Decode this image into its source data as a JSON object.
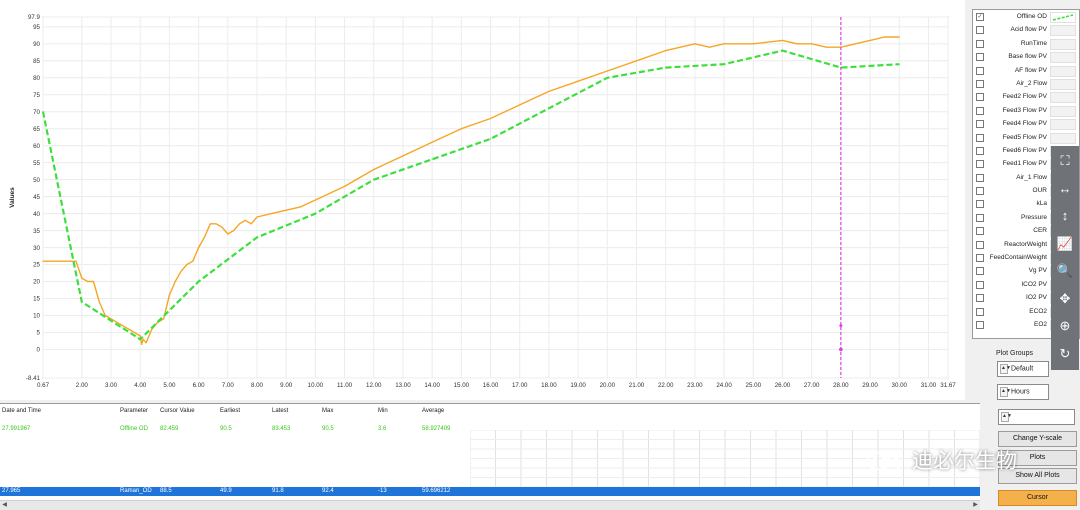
{
  "chart_data": {
    "type": "line",
    "title": "",
    "xlabel": "",
    "ylabel": "Values",
    "xlim": [
      0.67,
      31.67
    ],
    "ylim": [
      -8.41,
      97.9
    ],
    "x_ticks": [
      "0.67",
      "2.00",
      "3.00",
      "4.00",
      "5.00",
      "6.00",
      "7.00",
      "8.00",
      "9.00",
      "10.00",
      "11.00",
      "12.00",
      "13.00",
      "14.00",
      "15.00",
      "16.00",
      "17.00",
      "18.00",
      "19.00",
      "20.00",
      "21.00",
      "22.00",
      "23.00",
      "24.00",
      "25.00",
      "26.00",
      "27.00",
      "28.00",
      "29.00",
      "30.00",
      "31.00",
      "31.67"
    ],
    "y_ticks": [
      "97.9",
      "95",
      "90",
      "85",
      "80",
      "75",
      "70",
      "65",
      "60",
      "55",
      "50",
      "45",
      "40",
      "35",
      "30",
      "25",
      "20",
      "15",
      "10",
      "5",
      "0",
      "-8.41"
    ],
    "grid": true,
    "cursor_x": 28.0,
    "series": [
      {
        "color": "#f5a623",
        "style": "solid",
        "x": [
          0.67,
          1.2,
          1.8,
          2.0,
          2.2,
          2.4,
          2.6,
          2.8,
          3.0,
          3.2,
          3.4,
          3.6,
          3.8,
          4.0,
          4.05,
          4.1,
          4.2,
          4.4,
          4.6,
          4.8,
          5.0,
          5.2,
          5.4,
          5.6,
          5.8,
          6.0,
          6.2,
          6.4,
          6.6,
          6.8,
          7.0,
          7.2,
          7.4,
          7.6,
          7.8,
          8.0,
          8.5,
          9.0,
          9.5,
          10.0,
          11.0,
          12.0,
          13.0,
          14.0,
          15.0,
          16.0,
          17.0,
          18.0,
          19.0,
          20.0,
          21.0,
          22.0,
          23.0,
          23.5,
          24.0,
          25.0,
          26.0,
          26.5,
          27.0,
          27.5,
          28.0,
          28.5,
          29.0,
          29.5,
          30.0
        ],
        "y": [
          26,
          26,
          26,
          21,
          20,
          20,
          14,
          10,
          9,
          8,
          7,
          6,
          5,
          4,
          1.5,
          3,
          2,
          6,
          8,
          9,
          16,
          20,
          23,
          25,
          26,
          30,
          33,
          37,
          37,
          36,
          34,
          35,
          37,
          38,
          37,
          39,
          40,
          41,
          42,
          44,
          48,
          53,
          57,
          61,
          65,
          68,
          72,
          76,
          79,
          82,
          85,
          88,
          90,
          89,
          90,
          90,
          91,
          90,
          90,
          89,
          89,
          90,
          91,
          92,
          92
        ]
      },
      {
        "color": "#3ddf3d",
        "style": "dashed",
        "x": [
          0.67,
          2.0,
          4.0,
          6.0,
          8.0,
          10.0,
          12.0,
          14.0,
          16.0,
          18.0,
          20.0,
          22.0,
          24.0,
          26.0,
          28.0,
          30.0
        ],
        "y": [
          70,
          14,
          3,
          20,
          33,
          40,
          50,
          56,
          62,
          71,
          80,
          83,
          84,
          88,
          83,
          84
        ]
      }
    ]
  },
  "legend": {
    "items": [
      {
        "name": "Offline OD",
        "checked": true,
        "color": "#3ddf3d"
      },
      {
        "name": "Acid flow PV",
        "checked": false
      },
      {
        "name": "RunTime",
        "checked": false
      },
      {
        "name": "Base flow PV",
        "checked": false
      },
      {
        "name": "AF flow PV",
        "checked": false
      },
      {
        "name": "Air_2 Flow",
        "checked": false
      },
      {
        "name": "Feed2 Flow PV",
        "checked": false
      },
      {
        "name": "Feed3 Flow PV",
        "checked": false
      },
      {
        "name": "Feed4 Flow PV",
        "checked": false
      },
      {
        "name": "Feed5 Flow PV",
        "checked": false
      },
      {
        "name": "Feed6 Flow PV",
        "checked": false
      },
      {
        "name": "Feed1 Flow PV",
        "checked": false
      },
      {
        "name": "Air_1 Flow",
        "checked": false
      },
      {
        "name": "OUR",
        "checked": false
      },
      {
        "name": "kLa",
        "checked": false
      },
      {
        "name": "Pressure",
        "checked": false
      },
      {
        "name": "CER",
        "checked": false
      },
      {
        "name": "ReactorWeight",
        "checked": false
      },
      {
        "name": "FeedContainWeight",
        "checked": false
      },
      {
        "name": "Vg PV",
        "checked": false
      },
      {
        "name": "ICO2 PV",
        "checked": false
      },
      {
        "name": "IO2 PV",
        "checked": false
      },
      {
        "name": "ECO2",
        "checked": false
      },
      {
        "name": "EO2",
        "checked": false
      }
    ],
    "check_mark": "✓"
  },
  "toolbar": {
    "icons": [
      "zoom-fit-icon",
      "zoom-x-icon",
      "zoom-y-icon",
      "autoscale-icon",
      "zoom-box-icon",
      "pan-icon",
      "target-icon",
      "reset-icon"
    ],
    "glyphs": [
      "⛶",
      "↔",
      "↕",
      "📈",
      "🔍",
      "✥",
      "⊕",
      "↻"
    ]
  },
  "plot_groups": {
    "label": "Plot Groups",
    "group_value": "Default",
    "unit_value": "Hours",
    "spin_glyph": "▲▼"
  },
  "buttons": {
    "change_y_scale": "Change Y-scale",
    "plots": "Plots",
    "show_all_plots": "Show All Plots",
    "cursor": "Cursor"
  },
  "table": {
    "headers": [
      "Date and Time",
      "Parameter",
      "Cursor Value",
      "Earliest",
      "Latest",
      "Max",
      "Min",
      "Average"
    ],
    "rows": [
      {
        "style": "green",
        "cells": [
          "27.991967",
          "Offline OD",
          "82.459",
          "90.5",
          "83.453",
          "90.5",
          "3.6",
          "58.927409"
        ]
      },
      {
        "style": "blue",
        "cells": [
          "27.965",
          "Raman_OD",
          "88.5",
          "49.9",
          "91.8",
          "92.4",
          "-13",
          "59.696212"
        ]
      }
    ]
  },
  "scrollbar": {
    "left_arrow": "◀",
    "right_arrow": "▶"
  },
  "watermark": {
    "text": "迪必尔生物"
  }
}
